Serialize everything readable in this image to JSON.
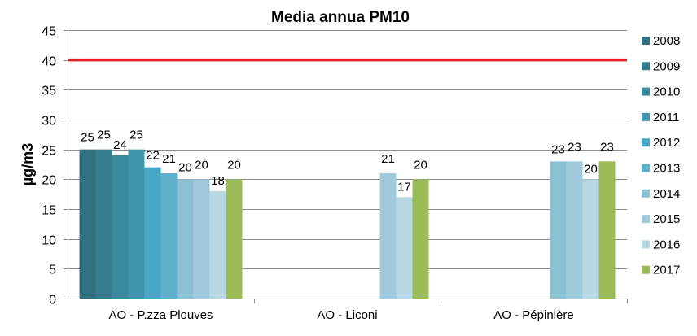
{
  "chart_data": {
    "type": "bar",
    "title": "Media annua PM10",
    "xlabel": "",
    "ylabel": "µg/m3",
    "ylim": [
      0,
      45
    ],
    "yticks": [
      0,
      5,
      10,
      15,
      20,
      25,
      30,
      35,
      40,
      45
    ],
    "grid": true,
    "legend_position": "right",
    "categories": [
      "AO - P.zza Plouves",
      "AO - Liconi",
      "AO - Pépinière"
    ],
    "reference_line": {
      "value": 40,
      "color": "#e0201e"
    },
    "series": [
      {
        "name": "2008",
        "color": "#31717f",
        "values": [
          25,
          null,
          null
        ]
      },
      {
        "name": "2009",
        "color": "#367d8f",
        "values": [
          25,
          null,
          null
        ]
      },
      {
        "name": "2010",
        "color": "#3a8a9e",
        "values": [
          24,
          null,
          null
        ]
      },
      {
        "name": "2011",
        "color": "#3f96ac",
        "values": [
          25,
          null,
          null
        ]
      },
      {
        "name": "2012",
        "color": "#4aa7c4",
        "values": [
          22,
          null,
          null
        ]
      },
      {
        "name": "2013",
        "color": "#5fb0cb",
        "values": [
          21,
          null,
          null
        ]
      },
      {
        "name": "2014",
        "color": "#8cc1d3",
        "values": [
          20,
          null,
          23
        ]
      },
      {
        "name": "2015",
        "color": "#a0cadc",
        "values": [
          20,
          21,
          23
        ]
      },
      {
        "name": "2016",
        "color": "#b7d7e3",
        "values": [
          18,
          17,
          20
        ]
      },
      {
        "name": "2017",
        "color": "#9bbb59",
        "values": [
          20,
          20,
          23
        ]
      }
    ]
  }
}
